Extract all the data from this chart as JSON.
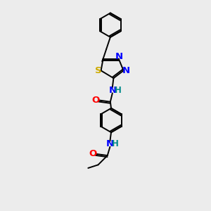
{
  "background_color": "#ececec",
  "figsize": [
    3.0,
    3.0
  ],
  "dpi": 100,
  "lw": 1.4,
  "fs": 8.5,
  "colors": {
    "S": "#ccaa00",
    "N": "#0000ff",
    "O": "#ff0000",
    "NH": "#0000aa",
    "NH_teal": "#008b8b",
    "black": "#000000"
  },
  "xlim": [
    0,
    10
  ],
  "ylim": [
    0,
    13
  ]
}
